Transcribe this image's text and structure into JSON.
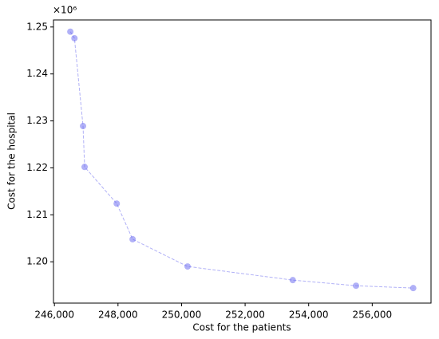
{
  "chart_data": {
    "type": "line",
    "x_label": "Cost for the patients",
    "y_label": "Cost for the hospital",
    "y_offset_label": "×10⁶",
    "x": [
      246500,
      246630,
      246900,
      246950,
      247960,
      248460,
      250190,
      253500,
      255490,
      257290
    ],
    "series": [
      {
        "color": "#6464f0",
        "values": [
          1.249,
          1.2476,
          1.2289,
          1.2202,
          1.2124,
          1.2048,
          1.199,
          1.1961,
          1.1949,
          1.1944
        ]
      }
    ],
    "xlim": [
      245970,
      257850
    ],
    "ylim": [
      1.1912,
      1.2515
    ],
    "xticks": [
      {
        "value": 246000,
        "label": "246,000"
      },
      {
        "value": 248000,
        "label": "248,000"
      },
      {
        "value": 250000,
        "label": "250,000"
      },
      {
        "value": 252000,
        "label": "252,000"
      },
      {
        "value": 254000,
        "label": "254,000"
      },
      {
        "value": 256000,
        "label": "256,000"
      }
    ],
    "yticks": [
      {
        "value": 1.2,
        "label": "1.20"
      },
      1.21,
      1.22,
      1.23,
      1.24,
      1.25
    ]
  }
}
